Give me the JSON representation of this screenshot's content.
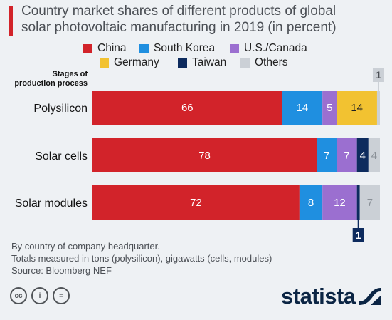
{
  "header": {
    "title_line1": "Country market shares of different products of global",
    "title_line2": "solar photovoltaic manufacturing in 2019 (in percent)",
    "accent_color": "#d2232a"
  },
  "chart_data": {
    "type": "bar",
    "orientation": "horizontal",
    "stacked": true,
    "unit": "percent",
    "categories_label_line1": "Stages of",
    "categories_label_line2": "production process",
    "categories": [
      "Polysilicon",
      "Solar cells",
      "Solar modules"
    ],
    "series": [
      {
        "name": "China",
        "color": "#d2232a",
        "values": [
          66,
          78,
          72
        ]
      },
      {
        "name": "South Korea",
        "color": "#1f8fe0",
        "values": [
          14,
          7,
          8
        ]
      },
      {
        "name": "U.S./Canada",
        "color": "#9b6fd0",
        "values": [
          5,
          7,
          12
        ]
      },
      {
        "name": "Germany",
        "color": "#f2c231",
        "values": [
          14,
          0,
          0
        ]
      },
      {
        "name": "Taiwan",
        "color": "#0d2b5e",
        "values": [
          0,
          4,
          1
        ]
      },
      {
        "name": "Others",
        "color": "#cbd0d6",
        "values": [
          1,
          4,
          7
        ]
      }
    ],
    "xlim": [
      0,
      100
    ],
    "grid": false,
    "legend_position": "top"
  },
  "footnote": {
    "line1": "By country of company headquarter.",
    "line2": "Totals measured in tons (polysilicon), gigawatts (cells, modules)",
    "line3": "Source: Bloomberg NEF"
  },
  "license_icons": {
    "cc": "cc",
    "by": "i",
    "nd": "="
  },
  "brand": {
    "name": "statista"
  }
}
